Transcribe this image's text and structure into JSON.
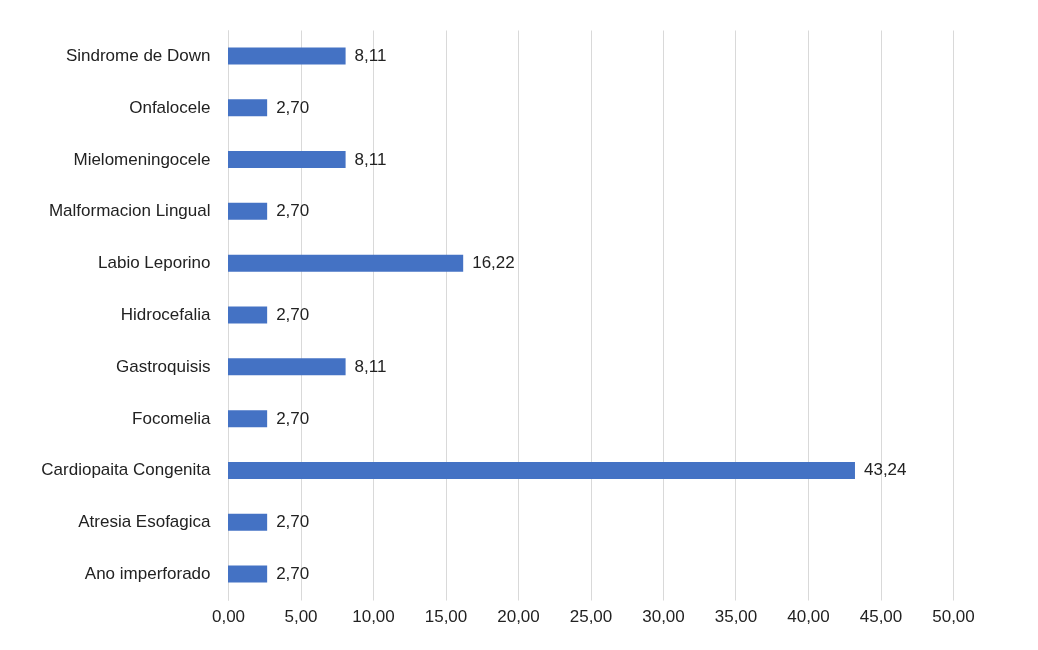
{
  "chart_data": {
    "type": "bar",
    "orientation": "horizontal",
    "categories": [
      "Sindrome de Down",
      "Onfalocele",
      "Mielomeningocele",
      "Malformacion Lingual",
      "Labio Leporino",
      "Hidrocefalia",
      "Gastroquisis",
      "Focomelia",
      "Cardiopaita Congenita",
      "Atresia Esofagica",
      "Ano imperforado"
    ],
    "values": [
      8.11,
      2.7,
      8.11,
      2.7,
      16.22,
      2.7,
      8.11,
      2.7,
      43.24,
      2.7,
      2.7
    ],
    "value_labels": [
      "8,11",
      "2,70",
      "8,11",
      "2,70",
      "16,22",
      "2,70",
      "8,11",
      "2,70",
      "43,24",
      "2,70",
      "2,70"
    ],
    "color": "#4472c4",
    "xlim": [
      0,
      50
    ],
    "xticks": [
      {
        "value": 0,
        "label": "0,00"
      },
      {
        "value": 5,
        "label": "5,00"
      },
      {
        "value": 10,
        "label": "10,00"
      },
      {
        "value": 15,
        "label": "15,00"
      },
      {
        "value": 20,
        "label": "20,00"
      },
      {
        "value": 25,
        "label": "25,00"
      },
      {
        "value": 30,
        "label": "30,00"
      },
      {
        "value": 35,
        "label": "35,00"
      },
      {
        "value": 40,
        "label": "40,00"
      },
      {
        "value": 45,
        "label": "45,00"
      },
      {
        "value": 50,
        "label": "50,00"
      }
    ],
    "grid": "x"
  }
}
